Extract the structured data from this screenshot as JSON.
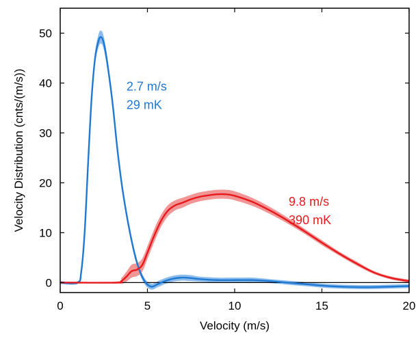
{
  "chart_data": {
    "type": "line",
    "title": "",
    "xlabel": "Velocity (m/s)",
    "ylabel": "Velocity Distribution (cnts/(m/s))",
    "xlim": [
      0,
      20
    ],
    "ylim": [
      -2,
      55
    ],
    "x_ticks": [
      0,
      5,
      10,
      15,
      20
    ],
    "y_ticks": [
      0,
      10,
      20,
      30,
      40,
      50
    ],
    "grid": false,
    "legend": "none",
    "series": [
      {
        "color": "#1f78d1",
        "band_color": "#7fb6ea",
        "x": [
          0,
          1.0,
          1.2,
          1.4,
          1.6,
          1.8,
          2.0,
          2.2,
          2.35,
          2.5,
          2.7,
          3.0,
          3.3,
          3.6,
          4.0,
          4.4,
          4.8,
          5.2,
          5.6,
          6.0,
          6.5,
          7.0,
          7.5,
          8.0,
          9.0,
          10.0,
          11.0,
          12.0,
          13.0,
          14.0,
          15.0,
          16.0,
          17.0,
          18.0,
          19.0,
          20.0
        ],
        "y": [
          0,
          0,
          2.0,
          10.0,
          24.0,
          37.0,
          45.0,
          48.5,
          49.2,
          48.0,
          44.0,
          36.0,
          26.0,
          18.0,
          10.0,
          4.0,
          0.5,
          -0.8,
          -0.3,
          0.3,
          0.8,
          1.0,
          0.9,
          0.7,
          0.5,
          0.5,
          0.5,
          0.3,
          0,
          -0.3,
          -0.6,
          -0.8,
          -0.9,
          -0.9,
          -0.8,
          -0.7
        ],
        "band": [
          0.3,
          0.3,
          0.5,
          0.8,
          1.0,
          1.2,
          1.2,
          1.3,
          1.3,
          1.3,
          1.2,
          1.1,
          1.0,
          0.9,
          0.8,
          0.7,
          0.6,
          0.6,
          0.6,
          0.6,
          0.6,
          0.6,
          0.6,
          0.5,
          0.5,
          0.5,
          0.5,
          0.4,
          0.4,
          0.4,
          0.4,
          0.4,
          0.4,
          0.4,
          0.4,
          0.4
        ]
      },
      {
        "color": "#e8191d",
        "band_color": "#f08a8a",
        "x": [
          0,
          3.2,
          3.5,
          3.8,
          4.1,
          4.4,
          4.7,
          5.0,
          5.4,
          5.8,
          6.2,
          6.6,
          7.0,
          7.5,
          8.0,
          8.5,
          9.0,
          9.5,
          10.0,
          11.0,
          12.0,
          13.0,
          14.0,
          15.0,
          16.0,
          17.0,
          18.0,
          19.0,
          20.0
        ],
        "y": [
          0,
          0,
          0.3,
          1.2,
          2.3,
          2.6,
          3.5,
          6.0,
          9.5,
          12.5,
          14.5,
          15.5,
          16.0,
          16.7,
          17.2,
          17.5,
          17.7,
          17.7,
          17.4,
          16.2,
          14.5,
          12.5,
          10.3,
          8.0,
          5.8,
          3.8,
          2.0,
          0.9,
          0.3
        ],
        "band": [
          0.15,
          0.2,
          0.6,
          1.0,
          1.3,
          1.3,
          1.3,
          1.3,
          1.3,
          1.2,
          1.1,
          1.0,
          1.0,
          0.9,
          0.9,
          0.9,
          0.9,
          0.9,
          0.9,
          0.8,
          0.7,
          0.6,
          0.5,
          0.5,
          0.4,
          0.4,
          0.3,
          0.3,
          0.3
        ]
      }
    ],
    "annotations": [
      {
        "lines": [
          "2.7 m/s",
          "29 mK"
        ],
        "x": 3.8,
        "y": 38.5,
        "color": "#1f78d1"
      },
      {
        "lines": [
          "9.8 m/s",
          "390 mK"
        ],
        "x": 13.1,
        "y": 15.4,
        "color": "#e8191d"
      }
    ]
  }
}
